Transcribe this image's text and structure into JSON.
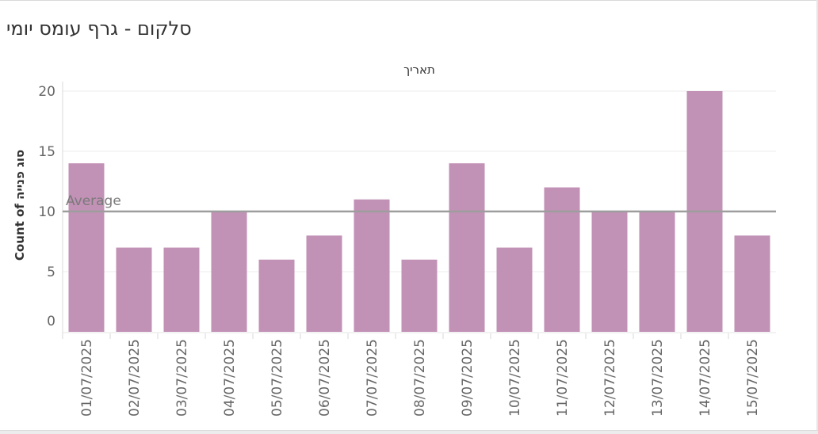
{
  "page_title": "סלקום - גרף עומס יומי",
  "colors": {
    "bar": "#c291b6",
    "average_line": "#9d9d9d",
    "axis_text": "#666666",
    "grid": "#eeeeee"
  },
  "chart_data": {
    "type": "bar",
    "title": "סלקום - גרף עומס יומי",
    "xlabel": "תאריך",
    "ylabel": "Count of סוג פנייה",
    "categories": [
      "01/07/2025",
      "02/07/2025",
      "03/07/2025",
      "04/07/2025",
      "05/07/2025",
      "06/07/2025",
      "07/07/2025",
      "08/07/2025",
      "09/07/2025",
      "10/07/2025",
      "11/07/2025",
      "12/07/2025",
      "13/07/2025",
      "14/07/2025",
      "15/07/2025"
    ],
    "values": [
      14,
      7,
      7,
      10,
      6,
      8,
      11,
      6,
      14,
      7,
      12,
      10,
      10,
      20,
      8
    ],
    "ylim": [
      -1,
      21
    ],
    "yticks": [
      0,
      5,
      10,
      15,
      20
    ],
    "reference_line": {
      "label": "Average",
      "value": 10
    },
    "grid": true
  }
}
